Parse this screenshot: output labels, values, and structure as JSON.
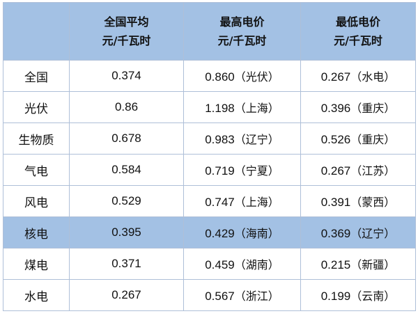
{
  "table": {
    "header": {
      "first": "",
      "columns": [
        {
          "line1": "全国平均",
          "line2": "元/千瓦时"
        },
        {
          "line1": "最高电价",
          "line2": "元/千瓦时"
        },
        {
          "line1": "最低电价",
          "line2": "元/千瓦时"
        }
      ]
    },
    "rows": [
      {
        "label": "全国",
        "avg": "0.374",
        "high": "0.860",
        "high_prov": "（光伏）",
        "low": "0.267",
        "low_prov": "（水电）"
      },
      {
        "label": "光伏",
        "avg": "0.86",
        "high": "1.198",
        "high_prov": "（上海）",
        "low": "0.396",
        "low_prov": "（重庆）"
      },
      {
        "label": "生物质",
        "avg": "0.678",
        "high": "0.983",
        "high_prov": "（辽宁）",
        "low": "0.526",
        "low_prov": "（重庆）"
      },
      {
        "label": "气电",
        "avg": "0.584",
        "high": "0.719",
        "high_prov": "（宁夏）",
        "low": "0.267",
        "low_prov": "（江苏）"
      },
      {
        "label": "风电",
        "avg": "0.529",
        "high": "0.747",
        "high_prov": "（上海）",
        "low": "0.391",
        "low_prov": "（蒙西）"
      },
      {
        "label": "核电",
        "avg": "0.395",
        "high": "0.429",
        "high_prov": "（海南）",
        "low": "0.369",
        "low_prov": "（辽宁）"
      },
      {
        "label": "煤电",
        "avg": "0.371",
        "high": "0.459",
        "high_prov": "（湖南）",
        "low": "0.215",
        "low_prov": "（新疆）"
      },
      {
        "label": "水电",
        "avg": "0.267",
        "high": "0.567",
        "high_prov": "（浙江）",
        "low": "0.199",
        "low_prov": "（云南）"
      }
    ],
    "highlight_row_color": "#a3c1e4",
    "header_color": "#a3c1e4"
  }
}
